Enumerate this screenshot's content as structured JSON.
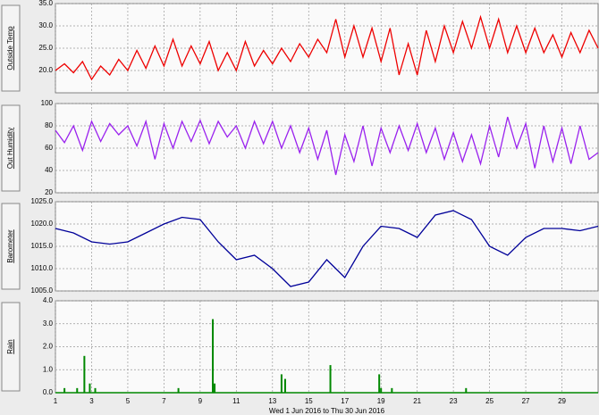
{
  "chart_data": [
    {
      "type": "line",
      "ylabel": "Outside Temp",
      "color": "#ee0000",
      "x": [
        1,
        1.5,
        2,
        2.5,
        3,
        3.5,
        4,
        4.5,
        5,
        5.5,
        6,
        6.5,
        7,
        7.5,
        8,
        8.5,
        9,
        9.5,
        10,
        10.5,
        11,
        11.5,
        12,
        12.5,
        13,
        13.5,
        14,
        14.5,
        15,
        15.5,
        16,
        16.5,
        17,
        17.5,
        18,
        18.5,
        19,
        19.5,
        20,
        20.5,
        21,
        21.5,
        22,
        22.5,
        23,
        23.5,
        24,
        24.5,
        25,
        25.5,
        26,
        26.5,
        27,
        27.5,
        28,
        28.5,
        29,
        29.5,
        30,
        30.5,
        31
      ],
      "values": [
        20,
        21.5,
        19.5,
        22,
        18,
        21,
        19,
        22.5,
        20,
        24.5,
        20.5,
        25.5,
        21,
        27,
        21,
        25.5,
        21.5,
        26.5,
        20,
        24,
        20,
        26.5,
        21,
        24.5,
        21.5,
        25,
        22,
        26,
        23,
        27,
        24,
        31.5,
        23,
        30,
        23,
        29.5,
        22,
        29.5,
        19,
        26,
        19,
        29,
        22,
        30,
        24,
        31,
        25,
        32,
        25,
        31.5,
        24,
        30,
        24,
        29.5,
        24,
        28,
        23,
        28.5,
        24,
        29,
        25
      ],
      "xlim": [
        1,
        31
      ],
      "xticks": [
        1,
        3,
        5,
        7,
        9,
        11,
        13,
        15,
        17,
        19,
        21,
        23,
        25,
        27,
        29
      ],
      "ylim": [
        15,
        35
      ],
      "yticks": [
        {
          "value": 20,
          "label": "20.0"
        },
        {
          "value": 25,
          "label": "25.0"
        },
        {
          "value": 30,
          "label": "30.0"
        },
        {
          "value": 35,
          "label": "35.0"
        }
      ]
    },
    {
      "type": "line",
      "ylabel": "Out Humidity",
      "color": "#9a22ee",
      "x": [
        1,
        1.5,
        2,
        2.5,
        3,
        3.5,
        4,
        4.5,
        5,
        5.5,
        6,
        6.5,
        7,
        7.5,
        8,
        8.5,
        9,
        9.5,
        10,
        10.5,
        11,
        11.5,
        12,
        12.5,
        13,
        13.5,
        14,
        14.5,
        15,
        15.5,
        16,
        16.5,
        17,
        17.5,
        18,
        18.5,
        19,
        19.5,
        20,
        20.5,
        21,
        21.5,
        22,
        22.5,
        23,
        23.5,
        24,
        24.5,
        25,
        25.5,
        26,
        26.5,
        27,
        27.5,
        28,
        28.5,
        29,
        29.5,
        30,
        30.5,
        31
      ],
      "values": [
        76,
        65,
        80,
        58,
        84,
        66,
        82,
        72,
        80,
        62,
        84,
        50,
        82,
        60,
        84,
        66,
        85,
        64,
        84,
        70,
        80,
        60,
        84,
        64,
        84,
        60,
        80,
        56,
        78,
        50,
        76,
        36,
        72,
        48,
        80,
        44,
        78,
        56,
        80,
        58,
        82,
        56,
        78,
        50,
        74,
        48,
        72,
        46,
        80,
        52,
        88,
        60,
        82,
        42,
        80,
        48,
        78,
        46,
        80,
        50,
        56
      ],
      "xlim": [
        1,
        31
      ],
      "xticks": [
        1,
        3,
        5,
        7,
        9,
        11,
        13,
        15,
        17,
        19,
        21,
        23,
        25,
        27,
        29
      ],
      "ylim": [
        20,
        100
      ],
      "yticks": [
        20,
        40,
        60,
        80,
        100
      ]
    },
    {
      "type": "line",
      "ylabel": "Barometer",
      "color": "#000099",
      "x": [
        1,
        2,
        3,
        4,
        5,
        6,
        7,
        8,
        9,
        10,
        11,
        12,
        13,
        14,
        15,
        16,
        17,
        18,
        19,
        20,
        21,
        22,
        23,
        24,
        25,
        26,
        27,
        28,
        29,
        30,
        31
      ],
      "values": [
        1019,
        1018,
        1016,
        1015.5,
        1016,
        1018,
        1020,
        1021.5,
        1021,
        1016,
        1012,
        1013,
        1010,
        1006,
        1007,
        1012,
        1008,
        1015,
        1019.5,
        1019,
        1017,
        1022,
        1023,
        1021,
        1015,
        1013,
        1017,
        1019,
        1019,
        1018.5,
        1019.5
      ],
      "xlim": [
        1,
        31
      ],
      "xticks": [
        1,
        3,
        5,
        7,
        9,
        11,
        13,
        15,
        17,
        19,
        21,
        23,
        25,
        27,
        29
      ],
      "ylim": [
        1005,
        1025
      ],
      "yticks": [
        {
          "value": 1005,
          "label": "1005.0"
        },
        {
          "value": 1010,
          "label": "1010.0"
        },
        {
          "value": 1015,
          "label": "1015.0"
        },
        {
          "value": 1020,
          "label": "1020.0"
        },
        {
          "value": 1025,
          "label": "1025.0"
        }
      ]
    },
    {
      "type": "bar",
      "ylabel": "Rain",
      "color": "#008800",
      "xlabel": "Wed 1 Jun 2016  to Thu 30 Jun 2016",
      "x": [
        1.5,
        2.2,
        2.6,
        2.9,
        3.2,
        7.8,
        9.7,
        9.8,
        13.5,
        13.7,
        16.2,
        18.9,
        19.0,
        19.6,
        23.7
      ],
      "values": [
        0.2,
        0.2,
        1.6,
        0.4,
        0.2,
        0.2,
        3.2,
        0.4,
        0.8,
        0.6,
        1.2,
        0.8,
        0.2,
        0.2,
        0.2
      ],
      "xlim": [
        1,
        31
      ],
      "xticks": [
        1,
        3,
        5,
        7,
        9,
        11,
        13,
        15,
        17,
        19,
        21,
        23,
        25,
        27,
        29
      ],
      "ylim": [
        0,
        4
      ],
      "yticks": [
        {
          "value": 0,
          "label": "0.0"
        },
        {
          "value": 1,
          "label": "1.0"
        },
        {
          "value": 2,
          "label": "2.0"
        },
        {
          "value": 3,
          "label": "3.0"
        },
        {
          "value": 4,
          "label": "4.0"
        }
      ]
    }
  ]
}
